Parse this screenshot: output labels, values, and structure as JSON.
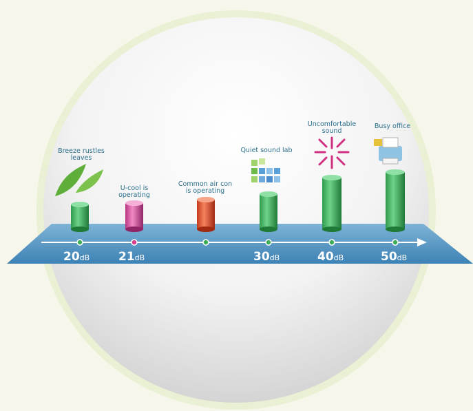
{
  "items": [
    {
      "caption": [
        "Breeze rustles",
        "leaves"
      ],
      "level": {
        "number": "20",
        "unit": "dB"
      }
    },
    {
      "caption": [
        "U-cool is",
        "operating"
      ],
      "level": {
        "number": "21",
        "unit": "dB"
      }
    },
    {
      "caption": [
        "Common air con",
        "is operating"
      ]
    },
    {
      "caption": [
        "Quiet sound lab"
      ],
      "level": {
        "number": "30",
        "unit": "dB"
      }
    },
    {
      "caption": [
        "Uncomfortable",
        "sound"
      ],
      "level": {
        "number": "40",
        "unit": "dB"
      }
    },
    {
      "caption": [
        "Busy office"
      ],
      "level": {
        "number": "50",
        "unit": "dB"
      }
    }
  ]
}
